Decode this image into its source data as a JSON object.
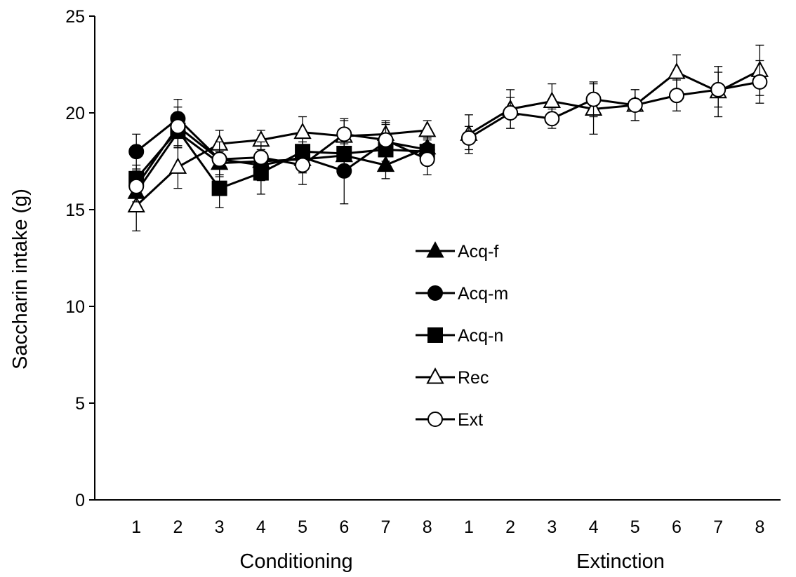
{
  "chart_data": {
    "type": "line",
    "ylabel": "Saccharin intake (g)",
    "ylim": [
      0,
      25
    ],
    "yticks": [
      0,
      5,
      10,
      15,
      20,
      25
    ],
    "grid": false,
    "legend_position": "center",
    "phases": [
      {
        "name": "Conditioning",
        "categories": [
          "1",
          "2",
          "3",
          "4",
          "5",
          "6",
          "7",
          "8"
        ]
      },
      {
        "name": "Extinction",
        "categories": [
          "1",
          "2",
          "3",
          "4",
          "5",
          "6",
          "7",
          "8"
        ]
      }
    ],
    "series": [
      {
        "name": "Acq-f",
        "marker": "triangle",
        "fill": "#000000",
        "phases": [
          {
            "values": [
              15.9,
              19.0,
              17.4,
              17.5,
              17.6,
              17.8,
              17.3,
              18.2
            ],
            "errors": [
              0.6,
              0.8,
              0.6,
              0.5,
              0.7,
              0.6,
              0.7,
              0.6
            ]
          },
          null
        ]
      },
      {
        "name": "Acq-m",
        "marker": "circle",
        "fill": "#000000",
        "phases": [
          {
            "values": [
              18.0,
              19.7,
              17.6,
              17.3,
              17.7,
              17.0,
              18.5,
              18.1
            ],
            "errors": [
              0.9,
              1.0,
              0.8,
              0.8,
              0.8,
              1.7,
              1.0,
              0.7
            ]
          },
          null
        ]
      },
      {
        "name": "Acq-n",
        "marker": "square",
        "fill": "#000000",
        "phases": [
          {
            "values": [
              16.6,
              19.1,
              16.1,
              16.9,
              18.0,
              17.9,
              18.1,
              18.0
            ],
            "errors": [
              0.7,
              0.9,
              1.0,
              1.1,
              0.8,
              0.8,
              0.8,
              0.7
            ]
          },
          null
        ]
      },
      {
        "name": "Rec",
        "marker": "triangle",
        "fill": "#ffffff",
        "phases": [
          {
            "values": [
              15.2,
              17.2,
              18.4,
              18.6,
              19.0,
              18.8,
              18.9,
              19.1
            ],
            "errors": [
              1.3,
              1.1,
              0.7,
              0.5,
              0.8,
              0.8,
              0.7,
              0.5
            ]
          },
          {
            "values": [
              18.9,
              20.2,
              20.6,
              20.2,
              20.4,
              22.1,
              21.1,
              22.2
            ],
            "errors": [
              1.0,
              1.0,
              0.9,
              1.3,
              0.8,
              0.9,
              1.3,
              1.3
            ]
          }
        ]
      },
      {
        "name": "Ext",
        "marker": "circle",
        "fill": "#ffffff",
        "phases": [
          {
            "values": [
              16.2,
              19.3,
              17.6,
              17.7,
              17.3,
              18.9,
              18.6,
              17.6
            ],
            "errors": [
              0.8,
              1.0,
              0.9,
              0.8,
              1.0,
              0.8,
              0.8,
              0.8
            ]
          },
          {
            "values": [
              18.7,
              20.0,
              19.7,
              20.7,
              20.4,
              20.9,
              21.2,
              21.6
            ],
            "errors": [
              0.6,
              0.8,
              0.5,
              0.9,
              0.8,
              0.8,
              0.9,
              1.1
            ]
          }
        ]
      }
    ]
  }
}
